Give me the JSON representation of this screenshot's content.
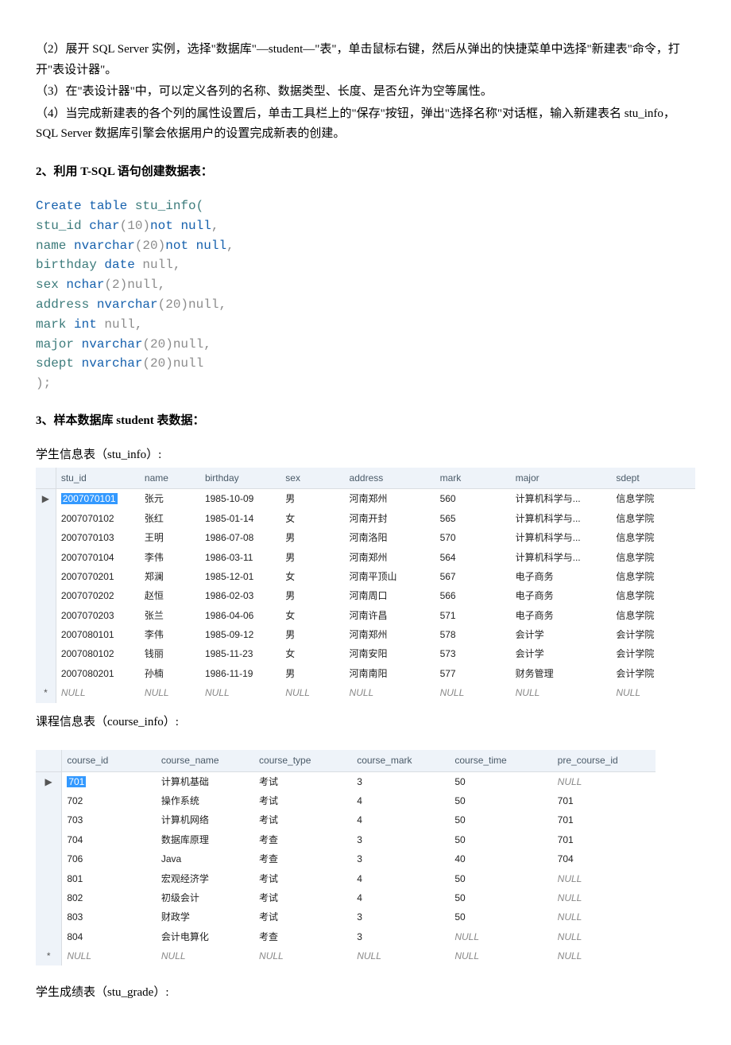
{
  "paras": {
    "p1": "（2）展开 SQL Server 实例，选择\"数据库\"—student—\"表\"，单击鼠标右键，然后从弹出的快捷菜单中选择\"新建表\"命令，打开\"表设计器\"。",
    "p2": "（3）在\"表设计器\"中，可以定义各列的名称、数据类型、长度、是否允许为空等属性。",
    "p3": "（4）当完成新建表的各个列的属性设置后，单击工具栏上的\"保存\"按钮，弹出\"选择名称\"对话框，输入新建表名 stu_info，SQL Server 数据库引擎会依据用户的设置完成新表的创建。"
  },
  "heading2": "2、利用 T-SQL 语句创建数据表：",
  "sql": {
    "l1a": "Create table",
    "l1b": " stu_info(",
    "l2a": "stu_id ",
    "l2b": "char",
    "l2c": "(10)",
    "l2d": "not null",
    "l2e": ",",
    "l3a": "name ",
    "l3b": "nvarchar",
    "l3c": "(20)",
    "l3d": "not null",
    "l3e": ",",
    "l4a": "birthday ",
    "l4b": "date",
    "l4c": " null",
    "l4d": ",",
    "l5a": "sex ",
    "l5b": "nchar",
    "l5c": "(2)",
    "l5d": "null",
    "l5e": ",",
    "l6a": "address ",
    "l6b": "nvarchar",
    "l6c": "(20)",
    "l6d": "null",
    "l6e": ",",
    "l7a": "mark ",
    "l7b": "int",
    "l7c": " null",
    "l7d": ",",
    "l8a": "major ",
    "l8b": "nvarchar",
    "l8c": "(20)",
    "l8d": "null",
    "l8e": ",",
    "l9a": "sdept ",
    "l9b": "nvarchar",
    "l9c": "(20)",
    "l9d": "null",
    "l10": ");"
  },
  "heading3": "3、样本数据库 student 表数据：",
  "cap_stu": "学生信息表（stu_info）:",
  "cap_course": "课程信息表（course_info）:",
  "cap_grade": "学生成绩表（stu_grade）:",
  "stu_info": {
    "columns": [
      "stu_id",
      "name",
      "birthday",
      "sex",
      "address",
      "mark",
      "major",
      "sdept"
    ],
    "col_widths": [
      "24px",
      "100px",
      "72px",
      "96px",
      "76px",
      "108px",
      "90px",
      "120px",
      "100px"
    ],
    "rows": [
      {
        "sel": true,
        "indicator": "▶",
        "cells": [
          "2007070101",
          "张元",
          "1985-10-09",
          "男",
          "河南郑州",
          "560",
          "计算机科学与...",
          "信息学院"
        ]
      },
      {
        "cells": [
          "2007070102",
          "张红",
          "1985-01-14",
          "女",
          "河南开封",
          "565",
          "计算机科学与...",
          "信息学院"
        ]
      },
      {
        "cells": [
          "2007070103",
          "王明",
          "1986-07-08",
          "男",
          "河南洛阳",
          "570",
          "计算机科学与...",
          "信息学院"
        ]
      },
      {
        "cells": [
          "2007070104",
          "李伟",
          "1986-03-11",
          "男",
          "河南郑州",
          "564",
          "计算机科学与...",
          "信息学院"
        ]
      },
      {
        "cells": [
          "2007070201",
          "郑澜",
          "1985-12-01",
          "女",
          "河南平顶山",
          "567",
          "电子商务",
          "信息学院"
        ]
      },
      {
        "cells": [
          "2007070202",
          "赵恒",
          "1986-02-03",
          "男",
          "河南周口",
          "566",
          "电子商务",
          "信息学院"
        ]
      },
      {
        "cells": [
          "2007070203",
          "张兰",
          "1986-04-06",
          "女",
          "河南许昌",
          "571",
          "电子商务",
          "信息学院"
        ]
      },
      {
        "cells": [
          "2007080101",
          "李伟",
          "1985-09-12",
          "男",
          "河南郑州",
          "578",
          "会计学",
          "会计学院"
        ]
      },
      {
        "cells": [
          "2007080102",
          "钱丽",
          "1985-11-23",
          "女",
          "河南安阳",
          "573",
          "会计学",
          "会计学院"
        ]
      },
      {
        "cells": [
          "2007080201",
          "孙楠",
          "1986-11-19",
          "男",
          "河南南阳",
          "577",
          "财务管理",
          "会计学院"
        ]
      },
      {
        "indicator": "*",
        "null": true,
        "cells": [
          "NULL",
          "NULL",
          "NULL",
          "NULL",
          "NULL",
          "NULL",
          "NULL",
          "NULL"
        ]
      }
    ]
  },
  "course_info": {
    "columns": [
      "course_id",
      "course_name",
      "course_type",
      "course_mark",
      "course_time",
      "pre_course_id"
    ],
    "col_widths": [
      "32px",
      "116px",
      "120px",
      "120px",
      "120px",
      "126px",
      "126px"
    ],
    "rows": [
      {
        "sel": true,
        "indicator": "▶",
        "cells": [
          "701",
          "计算机基础",
          "考试",
          "3",
          "50",
          "NULL"
        ],
        "nulls": [
          false,
          false,
          false,
          false,
          false,
          true
        ]
      },
      {
        "cells": [
          "702",
          "操作系统",
          "考试",
          "4",
          "50",
          "701"
        ]
      },
      {
        "cells": [
          "703",
          "计算机网络",
          "考试",
          "4",
          "50",
          "701"
        ]
      },
      {
        "cells": [
          "704",
          "数据库原理",
          "考查",
          "3",
          "50",
          "701"
        ]
      },
      {
        "cells": [
          "706",
          "Java",
          "考查",
          "3",
          "40",
          "704"
        ]
      },
      {
        "cells": [
          "801",
          "宏观经济学",
          "考试",
          "4",
          "50",
          "NULL"
        ],
        "nulls": [
          false,
          false,
          false,
          false,
          false,
          true
        ]
      },
      {
        "cells": [
          "802",
          "初级会计",
          "考试",
          "4",
          "50",
          "NULL"
        ],
        "nulls": [
          false,
          false,
          false,
          false,
          false,
          true
        ]
      },
      {
        "cells": [
          "803",
          "财政学",
          "考试",
          "3",
          "50",
          "NULL"
        ],
        "nulls": [
          false,
          false,
          false,
          false,
          false,
          true
        ]
      },
      {
        "cells": [
          "804",
          "会计电算化",
          "考查",
          "3",
          "NULL",
          "NULL"
        ],
        "nulls": [
          false,
          false,
          false,
          false,
          true,
          true
        ]
      },
      {
        "indicator": "*",
        "null": true,
        "cells": [
          "NULL",
          "NULL",
          "NULL",
          "NULL",
          "NULL",
          "NULL"
        ]
      }
    ]
  }
}
